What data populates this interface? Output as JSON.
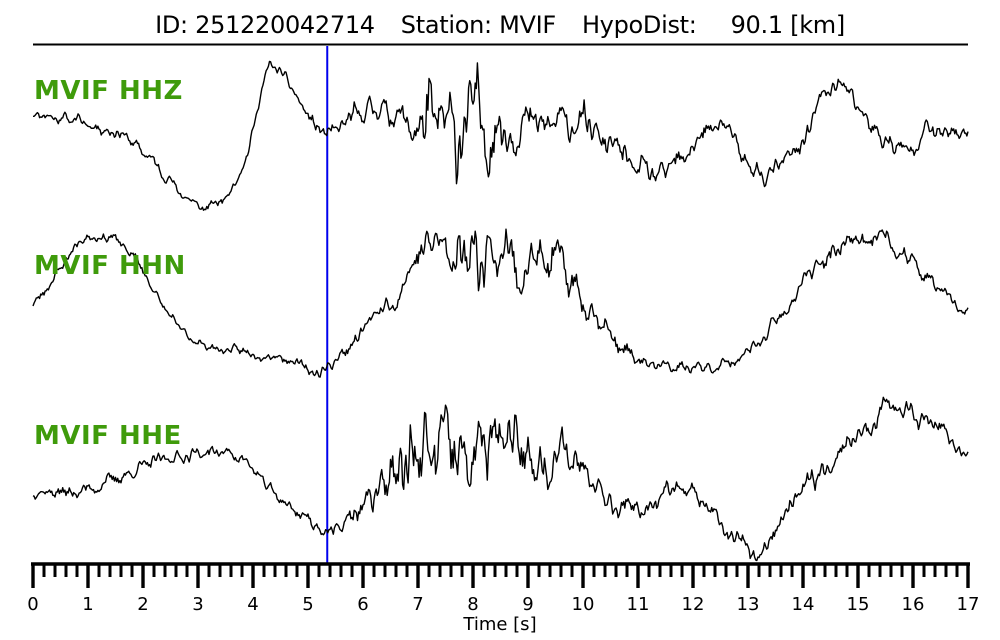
{
  "header": {
    "id_text": "ID: 251220042714",
    "station_text": "Station: MVIF",
    "hypodist_label": "HypoDist:",
    "hypodist_value": "90.1 [km]"
  },
  "chart_data": {
    "type": "line",
    "title": "ID: 251220042714   Station: MVIF   HypoDist:    90.1 [km]",
    "xlabel": "Time [s]",
    "x_range": [
      0,
      17
    ],
    "x_major_step": 1,
    "x_minor_step": 0.2,
    "grid": false,
    "legend_position": "none",
    "pick_line": {
      "x": 5.35,
      "color": "#0000ee"
    },
    "colors": {
      "trace": "#000000",
      "axis": "#000000",
      "trace_label": "#3f9b0b"
    },
    "traces": [
      {
        "id": "hhz",
        "label": "MVIF HHZ",
        "seed": 11,
        "center": [
          [
            0,
            0.33
          ],
          [
            0.4,
            0.27
          ],
          [
            0.9,
            0.21
          ],
          [
            1.6,
            0.05
          ],
          [
            2.2,
            -0.33
          ],
          [
            2.7,
            -0.76
          ],
          [
            3.1,
            -0.97
          ],
          [
            3.5,
            -0.82
          ],
          [
            3.9,
            -0.25
          ],
          [
            4.1,
            0.45
          ],
          [
            4.3,
            0.98
          ],
          [
            4.6,
            0.78
          ],
          [
            5.0,
            0.27
          ],
          [
            5.35,
            -0.02
          ],
          [
            5.7,
            0.18
          ],
          [
            6.2,
            0.42
          ],
          [
            6.6,
            0.3
          ],
          [
            7.0,
            0.08
          ],
          [
            7.5,
            0.02
          ],
          [
            8.1,
            0.2
          ],
          [
            8.6,
            0.18
          ],
          [
            9.2,
            0.12
          ],
          [
            9.9,
            0.22
          ],
          [
            10.5,
            -0.12
          ],
          [
            11.0,
            -0.45
          ],
          [
            11.4,
            -0.58
          ],
          [
            12.0,
            -0.12
          ],
          [
            12.5,
            0.22
          ],
          [
            12.9,
            -0.3
          ],
          [
            13.3,
            -0.55
          ],
          [
            13.9,
            -0.2
          ],
          [
            14.4,
            0.62
          ],
          [
            14.8,
            0.66
          ],
          [
            15.3,
            0.08
          ],
          [
            15.8,
            -0.22
          ],
          [
            16.2,
            0.1
          ],
          [
            16.6,
            0.02
          ],
          [
            17,
            0.08
          ]
        ],
        "noise_amp": [
          [
            0,
            0.06
          ],
          [
            1,
            0.07
          ],
          [
            2,
            0.07
          ],
          [
            3,
            0.05
          ],
          [
            4,
            0.05
          ],
          [
            5,
            0.06
          ],
          [
            5.6,
            0.11
          ],
          [
            6.4,
            0.13
          ],
          [
            6.85,
            0.2
          ],
          [
            7.1,
            0.5
          ],
          [
            7.7,
            0.52
          ],
          [
            8.3,
            0.45
          ],
          [
            8.7,
            0.25
          ],
          [
            9.5,
            0.2
          ],
          [
            10.5,
            0.16
          ],
          [
            11.5,
            0.13
          ],
          [
            12.5,
            0.12
          ],
          [
            13.5,
            0.1
          ],
          [
            14.5,
            0.12
          ],
          [
            15.5,
            0.12
          ],
          [
            16.5,
            0.1
          ],
          [
            17,
            0.09
          ]
        ]
      },
      {
        "id": "hhn",
        "label": "MVIF HHN",
        "seed": 23,
        "center": [
          [
            0,
            0.0
          ],
          [
            0.4,
            0.38
          ],
          [
            0.75,
            0.78
          ],
          [
            1.05,
            0.95
          ],
          [
            1.5,
            0.87
          ],
          [
            1.9,
            0.6
          ],
          [
            2.3,
            0.05
          ],
          [
            2.6,
            -0.28
          ],
          [
            3.0,
            -0.5
          ],
          [
            3.4,
            -0.6
          ],
          [
            4.0,
            -0.63
          ],
          [
            4.5,
            -0.68
          ],
          [
            5.0,
            -0.86
          ],
          [
            5.2,
            -0.92
          ],
          [
            5.5,
            -0.73
          ],
          [
            5.8,
            -0.52
          ],
          [
            6.2,
            -0.16
          ],
          [
            6.6,
            0.1
          ],
          [
            6.9,
            0.55
          ],
          [
            7.2,
            0.8
          ],
          [
            7.6,
            0.72
          ],
          [
            8.0,
            0.8
          ],
          [
            8.4,
            0.72
          ],
          [
            8.8,
            0.62
          ],
          [
            9.2,
            0.52
          ],
          [
            9.6,
            0.48
          ],
          [
            10.1,
            0.05
          ],
          [
            10.6,
            -0.5
          ],
          [
            11.0,
            -0.78
          ],
          [
            11.5,
            -0.84
          ],
          [
            12.0,
            -0.86
          ],
          [
            12.5,
            -0.8
          ],
          [
            13.0,
            -0.66
          ],
          [
            13.6,
            -0.16
          ],
          [
            14.2,
            0.5
          ],
          [
            14.8,
            0.88
          ],
          [
            15.3,
            0.92
          ],
          [
            15.6,
            0.82
          ],
          [
            16.0,
            0.56
          ],
          [
            16.5,
            0.16
          ],
          [
            17,
            -0.12
          ]
        ],
        "noise_amp": [
          [
            0,
            0.05
          ],
          [
            1,
            0.06
          ],
          [
            2,
            0.05
          ],
          [
            3,
            0.05
          ],
          [
            4,
            0.05
          ],
          [
            5,
            0.05
          ],
          [
            5.6,
            0.07
          ],
          [
            6.3,
            0.09
          ],
          [
            6.9,
            0.12
          ],
          [
            7.3,
            0.32
          ],
          [
            7.9,
            0.36
          ],
          [
            8.6,
            0.32
          ],
          [
            9.4,
            0.27
          ],
          [
            10.2,
            0.15
          ],
          [
            11,
            0.08
          ],
          [
            12,
            0.07
          ],
          [
            13,
            0.07
          ],
          [
            14,
            0.09
          ],
          [
            15,
            0.11
          ],
          [
            16,
            0.09
          ],
          [
            17,
            0.06
          ]
        ]
      },
      {
        "id": "hhe",
        "label": "MVIF HHE",
        "seed": 37,
        "center": [
          [
            0,
            -0.13
          ],
          [
            0.7,
            -0.16
          ],
          [
            1.2,
            -0.06
          ],
          [
            1.8,
            0.12
          ],
          [
            2.4,
            0.3
          ],
          [
            3.0,
            0.37
          ],
          [
            3.5,
            0.39
          ],
          [
            3.8,
            0.32
          ],
          [
            4.2,
            -0.04
          ],
          [
            4.7,
            -0.36
          ],
          [
            5.1,
            -0.55
          ],
          [
            5.45,
            -0.73
          ],
          [
            5.8,
            -0.46
          ],
          [
            6.1,
            -0.28
          ],
          [
            6.45,
            0.08
          ],
          [
            6.8,
            0.24
          ],
          [
            7.3,
            0.26
          ],
          [
            7.9,
            0.3
          ],
          [
            8.5,
            0.44
          ],
          [
            8.9,
            0.44
          ],
          [
            9.3,
            0.26
          ],
          [
            9.7,
            0.34
          ],
          [
            10.1,
            0.2
          ],
          [
            10.6,
            -0.3
          ],
          [
            10.9,
            -0.46
          ],
          [
            11.3,
            -0.22
          ],
          [
            11.7,
            -0.04
          ],
          [
            12.0,
            -0.16
          ],
          [
            12.4,
            -0.55
          ],
          [
            12.75,
            -0.78
          ],
          [
            13.05,
            -1.02
          ],
          [
            13.35,
            -0.86
          ],
          [
            13.6,
            -0.56
          ],
          [
            13.9,
            -0.28
          ],
          [
            14.3,
            0.14
          ],
          [
            14.8,
            0.5
          ],
          [
            15.2,
            0.75
          ],
          [
            15.55,
            1.05
          ],
          [
            15.9,
            0.85
          ],
          [
            16.3,
            0.78
          ],
          [
            16.6,
            0.6
          ],
          [
            17,
            0.36
          ]
        ],
        "noise_amp": [
          [
            0,
            0.06
          ],
          [
            1,
            0.07
          ],
          [
            2,
            0.07
          ],
          [
            3,
            0.07
          ],
          [
            4,
            0.06
          ],
          [
            5,
            0.08
          ],
          [
            5.7,
            0.1
          ],
          [
            6.3,
            0.2
          ],
          [
            6.8,
            0.5
          ],
          [
            7.4,
            0.52
          ],
          [
            8.0,
            0.42
          ],
          [
            8.7,
            0.36
          ],
          [
            9.4,
            0.26
          ],
          [
            10.1,
            0.16
          ],
          [
            11,
            0.12
          ],
          [
            12,
            0.1
          ],
          [
            13,
            0.1
          ],
          [
            14,
            0.12
          ],
          [
            15,
            0.14
          ],
          [
            15.7,
            0.13
          ],
          [
            16.4,
            0.11
          ],
          [
            17,
            0.08
          ]
        ]
      }
    ]
  }
}
